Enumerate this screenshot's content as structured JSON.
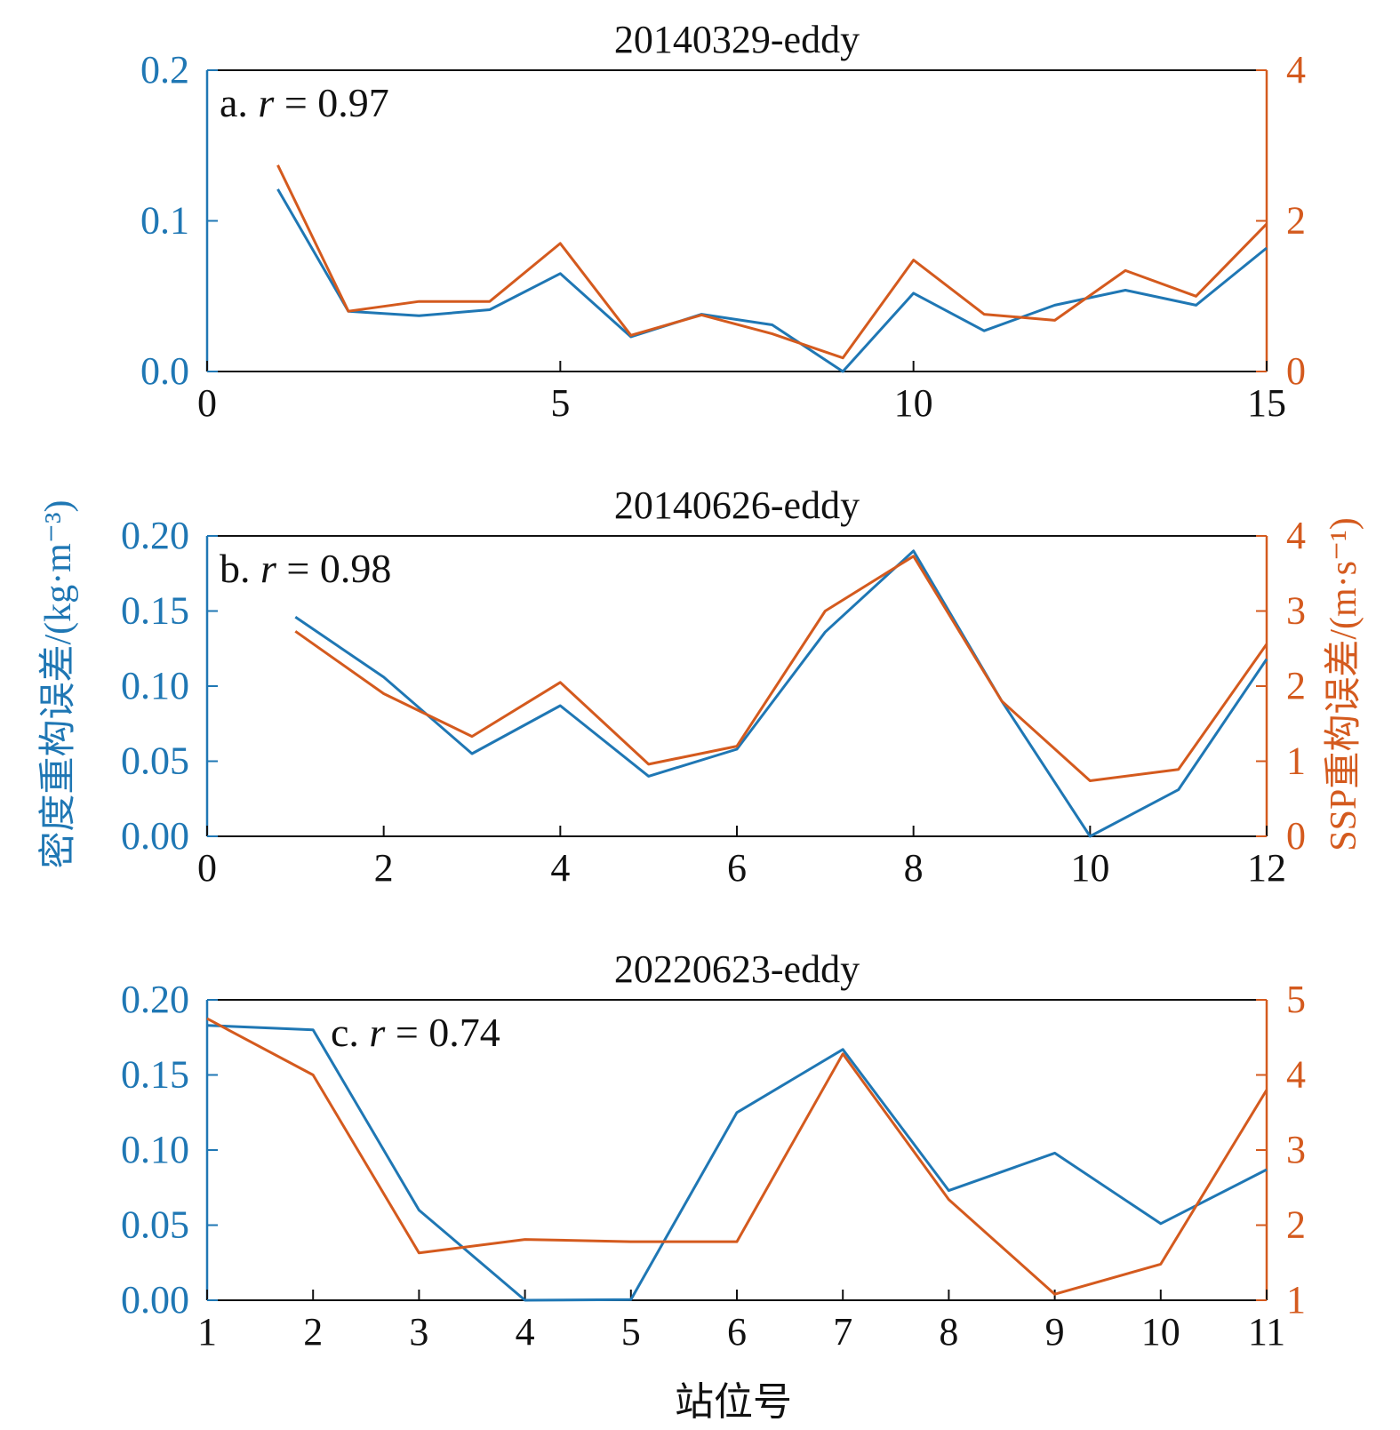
{
  "figure": {
    "shared_ylabel_left": "密度重构误差/(kg·m⁻³)",
    "shared_ylabel_right": "SSP重构误差/(m·s⁻¹)",
    "shared_xlabel": "站位号",
    "left_axis_color": "#1f77b4",
    "right_axis_color": "#d45a1e"
  },
  "chart_data": [
    {
      "type": "line",
      "title": "20140329-eddy",
      "annotation": {
        "prefix": "a. ",
        "var": "r",
        "rest": " = 0.97"
      },
      "xlim": [
        0,
        15
      ],
      "xticks": [
        0,
        5,
        10,
        15
      ],
      "xtick_labels": [
        "0",
        "5",
        "10",
        "15"
      ],
      "ylim_left": [
        0,
        0.2
      ],
      "yticks_left": [
        0,
        0.1,
        0.2
      ],
      "ytick_labels_left": [
        "0.0",
        "0.1",
        "0.2"
      ],
      "ylim_right": [
        0,
        4
      ],
      "yticks_right": [
        0,
        2,
        4
      ],
      "ytick_labels_right": [
        "0",
        "2",
        "4"
      ],
      "x": [
        1,
        2,
        3,
        4,
        5,
        6,
        7,
        8,
        9,
        10,
        11,
        12,
        13,
        14,
        15
      ],
      "series": [
        {
          "axis": "left",
          "color": "#1f77b4",
          "values": [
            0.121,
            0.04,
            0.037,
            0.041,
            0.065,
            0.023,
            0.038,
            0.031,
            0.0,
            0.052,
            0.027,
            0.044,
            0.054,
            0.044,
            0.082
          ]
        },
        {
          "axis": "right",
          "color": "#d45a1e",
          "values": [
            2.74,
            0.8,
            0.93,
            0.93,
            1.7,
            0.48,
            0.75,
            0.5,
            0.18,
            1.48,
            0.76,
            0.68,
            1.34,
            1.0,
            1.96
          ]
        }
      ]
    },
    {
      "type": "line",
      "title": "20140626-eddy",
      "annotation": {
        "prefix": "b. ",
        "var": "r",
        "rest": " = 0.98"
      },
      "xlim": [
        0,
        12
      ],
      "xticks": [
        0,
        2,
        4,
        6,
        8,
        10,
        12
      ],
      "xtick_labels": [
        "0",
        "2",
        "4",
        "6",
        "8",
        "10",
        "12"
      ],
      "ylim_left": [
        0,
        0.2
      ],
      "yticks_left": [
        0,
        0.05,
        0.1,
        0.15,
        0.2
      ],
      "ytick_labels_left": [
        "0.00",
        "0.05",
        "0.10",
        "0.15",
        "0.20"
      ],
      "ylim_right": [
        0,
        4
      ],
      "yticks_right": [
        0,
        1,
        2,
        3,
        4
      ],
      "ytick_labels_right": [
        "0",
        "1",
        "2",
        "3",
        "4"
      ],
      "x": [
        1,
        2,
        3,
        4,
        5,
        6,
        7,
        8,
        9,
        10,
        11,
        12
      ],
      "series": [
        {
          "axis": "left",
          "color": "#1f77b4",
          "values": [
            0.146,
            0.106,
            0.055,
            0.087,
            0.04,
            0.058,
            0.136,
            0.19,
            0.09,
            0.0,
            0.031,
            0.118
          ]
        },
        {
          "axis": "right",
          "color": "#d45a1e",
          "values": [
            2.73,
            1.9,
            1.33,
            2.05,
            0.96,
            1.2,
            3.0,
            3.73,
            1.8,
            0.74,
            0.89,
            2.56
          ]
        }
      ]
    },
    {
      "type": "line",
      "title": "20220623-eddy",
      "annotation": {
        "prefix": "c. ",
        "var": "r",
        "rest": " = 0.74"
      },
      "xlim": [
        1,
        11
      ],
      "xticks": [
        1,
        2,
        3,
        4,
        5,
        6,
        7,
        8,
        9,
        10,
        11
      ],
      "xtick_labels": [
        "1",
        "2",
        "3",
        "4",
        "5",
        "6",
        "7",
        "8",
        "9",
        "10",
        "11"
      ],
      "ylim_left": [
        0,
        0.2
      ],
      "yticks_left": [
        0,
        0.05,
        0.1,
        0.15,
        0.2
      ],
      "ytick_labels_left": [
        "0.00",
        "0.05",
        "0.10",
        "0.15",
        "0.20"
      ],
      "ylim_right": [
        1,
        5
      ],
      "yticks_right": [
        1,
        2,
        3,
        4,
        5
      ],
      "ytick_labels_right": [
        "1",
        "2",
        "3",
        "4",
        "5"
      ],
      "x": [
        1,
        2,
        3,
        4,
        5,
        6,
        7,
        8,
        9,
        10,
        11
      ],
      "series": [
        {
          "axis": "left",
          "color": "#1f77b4",
          "values": [
            0.183,
            0.18,
            0.06,
            0.0,
            0.0005,
            0.125,
            0.167,
            0.073,
            0.098,
            0.051,
            0.087
          ]
        },
        {
          "axis": "right",
          "color": "#d45a1e",
          "values": [
            4.75,
            4.0,
            1.63,
            1.81,
            1.78,
            1.78,
            4.28,
            2.34,
            1.08,
            1.48,
            3.8
          ]
        }
      ]
    }
  ]
}
